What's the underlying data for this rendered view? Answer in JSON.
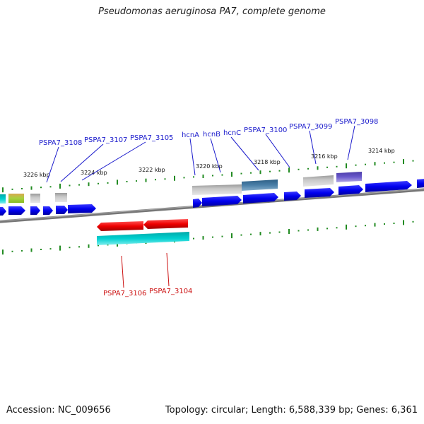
{
  "title": "Pseudomonas aeruginosa PA7, complete genome",
  "footer": {
    "accession": "Accession: NC_009656",
    "summary": "Topology: circular; Length: 6,588,339 bp; Genes: 6,361"
  },
  "tick_labels": [
    "3226 kbp",
    "3224 kbp",
    "3222 kbp",
    "3220 kbp",
    "3218 kbp",
    "3216 kbp",
    "3214 kbp"
  ],
  "forward_labels": [
    "PSPA7_3108",
    "PSPA7_3107",
    "PSPA7_3105",
    "hcnA",
    "hcnB",
    "hcnC",
    "PSPA7_3100",
    "PSPA7_3099",
    "PSPA7_3098"
  ],
  "reverse_labels": [
    "PSPA7_3106",
    "PSPA7_3104"
  ],
  "colors": {
    "forward_label": "#1a1acc",
    "reverse_label": "#cc1111",
    "forward_gene": "#0000ee",
    "reverse_gene": "#ee0000",
    "tick": "#228b22",
    "backbone": "#777777",
    "cyan_feature": "#00c8c8",
    "gray_feature": "#b8b8b8",
    "steel_feature": "#4a7fa8",
    "purple_feature": "#6a5acd",
    "lime_feature": "#99cc33"
  }
}
